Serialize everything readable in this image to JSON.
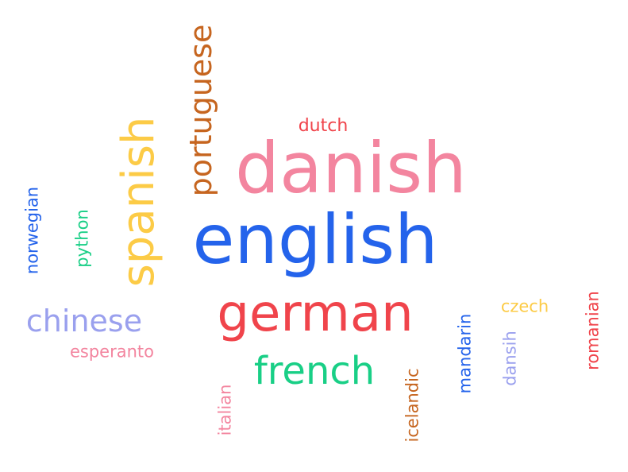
{
  "word_cloud": {
    "words": {
      "danish": {
        "text": "danish",
        "color": "#f3859f"
      },
      "english": {
        "text": "english",
        "color": "#2463eb"
      },
      "german": {
        "text": "german",
        "color": "#f0444b"
      },
      "french": {
        "text": "french",
        "color": "#19cf86"
      },
      "spanish": {
        "text": "spanish",
        "color": "#fccb46"
      },
      "portuguese": {
        "text": "portuguese",
        "color": "#c6651f"
      },
      "chinese": {
        "text": "chinese",
        "color": "#9aa0ee"
      },
      "dutch": {
        "text": "dutch",
        "color": "#f0444b"
      },
      "norwegian": {
        "text": "norwegian",
        "color": "#2463eb"
      },
      "python": {
        "text": "python",
        "color": "#19cf86"
      },
      "esperanto": {
        "text": "esperanto",
        "color": "#f3859f"
      },
      "italian": {
        "text": "italian",
        "color": "#f3859f"
      },
      "icelandic": {
        "text": "icelandic",
        "color": "#c6651f"
      },
      "mandarin": {
        "text": "mandarin",
        "color": "#2463eb"
      },
      "dansih": {
        "text": "dansih",
        "color": "#9aa0ee"
      },
      "czech": {
        "text": "czech",
        "color": "#fccb46"
      },
      "romanian": {
        "text": "romanian",
        "color": "#f0444b"
      }
    }
  }
}
